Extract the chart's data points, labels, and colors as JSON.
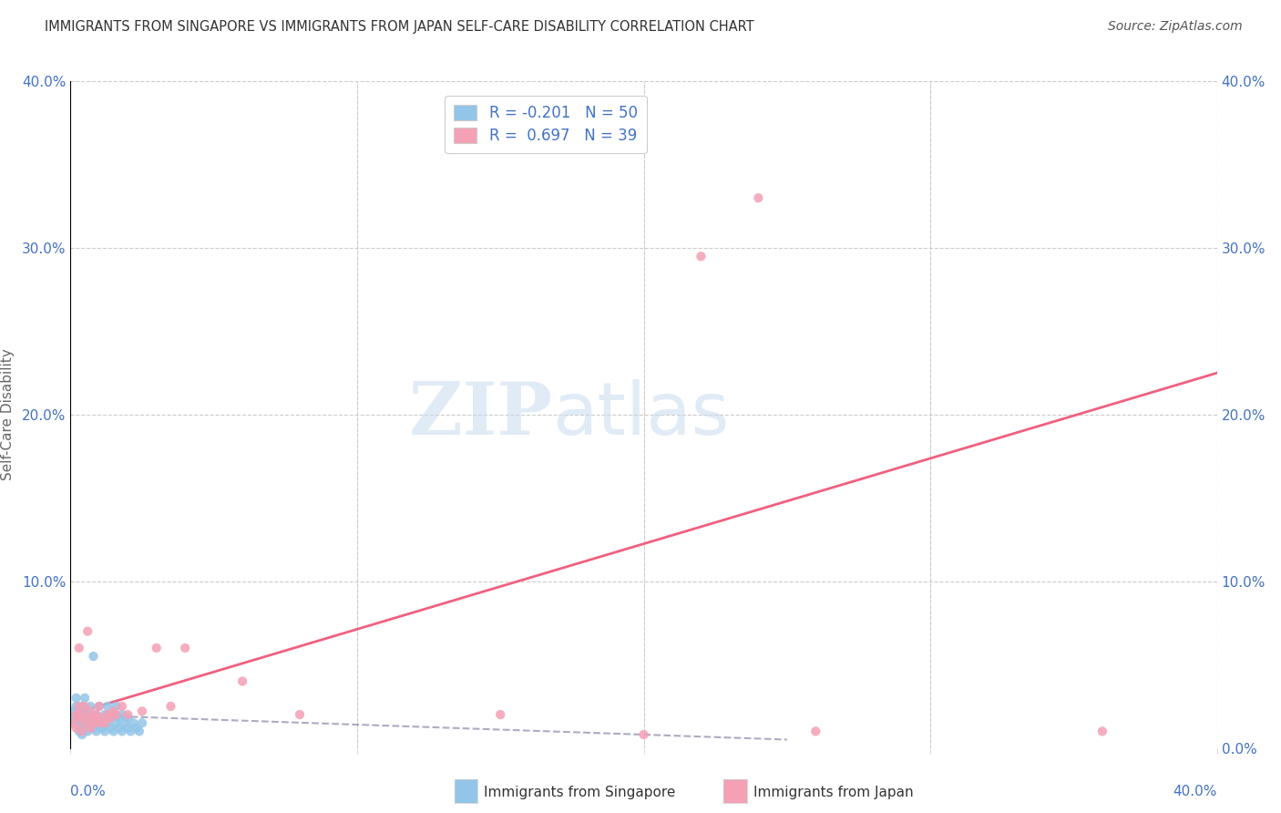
{
  "title": "IMMIGRANTS FROM SINGAPORE VS IMMIGRANTS FROM JAPAN SELF-CARE DISABILITY CORRELATION CHART",
  "source": "Source: ZipAtlas.com",
  "ylabel": "Self-Care Disability",
  "xlim": [
    0,
    0.4
  ],
  "ylim": [
    0,
    0.4
  ],
  "yticks": [
    0.0,
    0.1,
    0.2,
    0.3,
    0.4
  ],
  "left_ytick_labels": [
    "",
    "10.0%",
    "20.0%",
    "30.0%",
    "40.0%"
  ],
  "right_ytick_labels": [
    "0.0%",
    "10.0%",
    "20.0%",
    "30.0%",
    "40.0%"
  ],
  "singapore_color": "#92C5E8",
  "japan_color": "#F4A0B5",
  "singapore_line_color": "#8888AA",
  "japan_line_color": "#F06080",
  "singapore_R": -0.201,
  "singapore_N": 50,
  "japan_R": 0.697,
  "japan_N": 39,
  "watermark_text": "ZIPatlas",
  "legend_label_sg": "R = -0.201   N = 50",
  "legend_label_jp": "R =  0.697   N = 39",
  "bottom_label_sg": "Immigrants from Singapore",
  "bottom_label_jp": "Immigrants from Japan",
  "singapore_points": [
    [
      0.001,
      0.022
    ],
    [
      0.001,
      0.018
    ],
    [
      0.002,
      0.025
    ],
    [
      0.002,
      0.015
    ],
    [
      0.002,
      0.03
    ],
    [
      0.003,
      0.01
    ],
    [
      0.003,
      0.022
    ],
    [
      0.003,
      0.018
    ],
    [
      0.004,
      0.008
    ],
    [
      0.004,
      0.015
    ],
    [
      0.004,
      0.025
    ],
    [
      0.005,
      0.012
    ],
    [
      0.005,
      0.02
    ],
    [
      0.005,
      0.03
    ],
    [
      0.006,
      0.01
    ],
    [
      0.006,
      0.018
    ],
    [
      0.006,
      0.022
    ],
    [
      0.007,
      0.015
    ],
    [
      0.007,
      0.025
    ],
    [
      0.008,
      0.012
    ],
    [
      0.008,
      0.018
    ],
    [
      0.008,
      0.055
    ],
    [
      0.009,
      0.01
    ],
    [
      0.009,
      0.02
    ],
    [
      0.01,
      0.015
    ],
    [
      0.01,
      0.025
    ],
    [
      0.011,
      0.012
    ],
    [
      0.011,
      0.018
    ],
    [
      0.012,
      0.01
    ],
    [
      0.012,
      0.02
    ],
    [
      0.013,
      0.015
    ],
    [
      0.013,
      0.025
    ],
    [
      0.014,
      0.012
    ],
    [
      0.014,
      0.018
    ],
    [
      0.015,
      0.01
    ],
    [
      0.015,
      0.02
    ],
    [
      0.016,
      0.015
    ],
    [
      0.016,
      0.025
    ],
    [
      0.017,
      0.012
    ],
    [
      0.017,
      0.018
    ],
    [
      0.018,
      0.01
    ],
    [
      0.018,
      0.02
    ],
    [
      0.019,
      0.015
    ],
    [
      0.02,
      0.012
    ],
    [
      0.02,
      0.018
    ],
    [
      0.021,
      0.01
    ],
    [
      0.022,
      0.015
    ],
    [
      0.023,
      0.012
    ],
    [
      0.024,
      0.01
    ],
    [
      0.025,
      0.015
    ]
  ],
  "japan_points": [
    [
      0.001,
      0.015
    ],
    [
      0.002,
      0.012
    ],
    [
      0.002,
      0.02
    ],
    [
      0.003,
      0.018
    ],
    [
      0.003,
      0.025
    ],
    [
      0.003,
      0.06
    ],
    [
      0.004,
      0.01
    ],
    [
      0.004,
      0.02
    ],
    [
      0.005,
      0.015
    ],
    [
      0.005,
      0.025
    ],
    [
      0.006,
      0.018
    ],
    [
      0.006,
      0.07
    ],
    [
      0.007,
      0.012
    ],
    [
      0.007,
      0.022
    ],
    [
      0.008,
      0.015
    ],
    [
      0.008,
      0.018
    ],
    [
      0.009,
      0.02
    ],
    [
      0.01,
      0.015
    ],
    [
      0.01,
      0.025
    ],
    [
      0.011,
      0.018
    ],
    [
      0.012,
      0.015
    ],
    [
      0.013,
      0.02
    ],
    [
      0.014,
      0.018
    ],
    [
      0.015,
      0.022
    ],
    [
      0.016,
      0.02
    ],
    [
      0.018,
      0.025
    ],
    [
      0.02,
      0.02
    ],
    [
      0.025,
      0.022
    ],
    [
      0.03,
      0.06
    ],
    [
      0.035,
      0.025
    ],
    [
      0.04,
      0.06
    ],
    [
      0.06,
      0.04
    ],
    [
      0.08,
      0.02
    ],
    [
      0.15,
      0.02
    ],
    [
      0.2,
      0.008
    ],
    [
      0.22,
      0.295
    ],
    [
      0.24,
      0.33
    ],
    [
      0.26,
      0.01
    ],
    [
      0.36,
      0.01
    ]
  ],
  "japan_line_x0": 0.0,
  "japan_line_y0": 0.02,
  "japan_line_x1": 0.4,
  "japan_line_y1": 0.225,
  "sg_line_x0": 0.0,
  "sg_line_y0": 0.02,
  "sg_line_x1": 0.25,
  "sg_line_y1": 0.005
}
